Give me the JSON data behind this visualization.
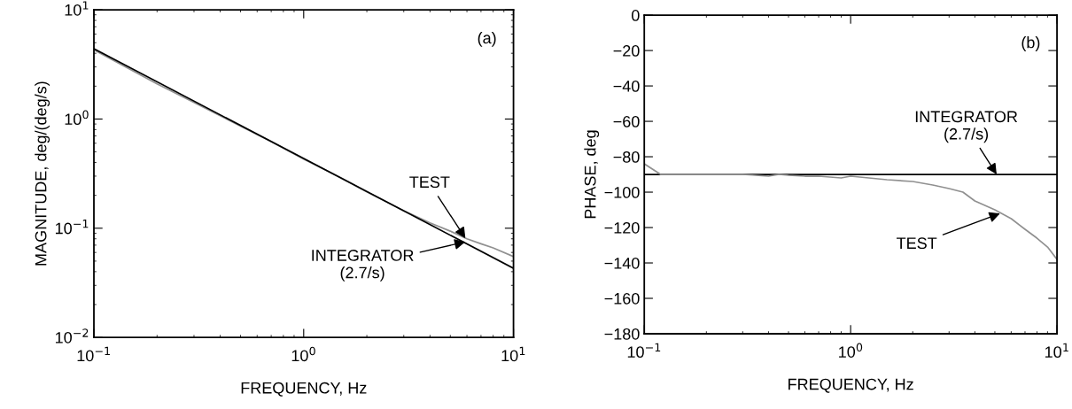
{
  "chart_data": [
    {
      "type": "line",
      "xlabel": "FREQUENCY, Hz",
      "ylabel": "MAGNITUDE, deg/(deg/s)",
      "log": "xy",
      "grid": false,
      "marker": "none",
      "line_style": "solid",
      "xlim": [
        0.1,
        10
      ],
      "ylim": [
        0.01,
        10
      ],
      "xticks": [
        {
          "value": 0.1,
          "label": "10$^{−1}$"
        },
        {
          "value": 1,
          "label": "10$^{0}$"
        },
        {
          "value": 10,
          "label": "10$^{1}$"
        }
      ],
      "yticks": [
        {
          "value": 0.01,
          "label": "10$^{−2}$"
        },
        {
          "value": 0.1,
          "label": "10$^{−1}$"
        },
        {
          "value": 1,
          "label": "10$^{0}$"
        },
        {
          "value": 10,
          "label": "10$^{1}$"
        }
      ],
      "series": [
        {
          "color": "#909090",
          "x": [
            0.1,
            0.2,
            0.3,
            0.5,
            0.7,
            1,
            1.5,
            2,
            3,
            4,
            5,
            6,
            7,
            8,
            10
          ],
          "values": [
            4.3,
            2.1,
            1.42,
            0.86,
            0.62,
            0.43,
            0.29,
            0.215,
            0.145,
            0.112,
            0.094,
            0.08,
            0.072,
            0.066,
            0.055
          ]
        },
        {
          "color": "#000000",
          "x": [
            0.1,
            10
          ],
          "values": [
            4.4,
            0.043
          ]
        }
      ],
      "annotations": [
        "(a)",
        {
          "text": "TEST",
          "x": 5.9,
          "y": 0.081
        },
        {
          "text": "INTEGRATOR\n(2.7/s)",
          "x": 5.9,
          "y": 0.075
        }
      ]
    },
    {
      "type": "line",
      "xlabel": "FREQUENCY, Hz",
      "ylabel": "PHASE, deg",
      "log": "x",
      "grid": false,
      "marker": "none",
      "line_style": "solid",
      "xlim": [
        0.1,
        10
      ],
      "ylim": [
        -180,
        0
      ],
      "xticks": [
        {
          "value": 0.1,
          "label": "10$^{−1}$"
        },
        {
          "value": 1,
          "label": "10$^{0}$"
        },
        {
          "value": 10,
          "label": "10$^{1}$"
        }
      ],
      "yticks": [
        {
          "value": -180,
          "label": "−180"
        },
        {
          "value": -160,
          "label": "−160"
        },
        {
          "value": -140,
          "label": "−140"
        },
        {
          "value": -120,
          "label": "−120"
        },
        {
          "value": -100,
          "label": "−100"
        },
        {
          "value": -80,
          "label": "−80"
        },
        {
          "value": -60,
          "label": "−60"
        },
        {
          "value": -40,
          "label": "−40"
        },
        {
          "value": -20,
          "label": "−20"
        },
        0
      ],
      "series": [
        {
          "color": "#000000",
          "x": [
            0.1,
            10
          ],
          "values": [
            -90,
            -90
          ]
        },
        {
          "color": "#909090",
          "x": [
            0.1,
            0.12,
            0.2,
            0.3,
            0.4,
            0.45,
            0.5,
            0.6,
            0.7,
            0.9,
            1,
            1.5,
            2,
            2.5,
            3,
            3.5,
            4,
            5,
            6,
            7,
            8,
            9,
            10
          ],
          "values": [
            -84,
            -90,
            -90,
            -90,
            -91,
            -90,
            -90.5,
            -91,
            -91,
            -92,
            -91,
            -93,
            -94,
            -96,
            -98,
            -100,
            -105,
            -110,
            -115,
            -121,
            -126,
            -131,
            -138
          ]
        }
      ],
      "annotations": [
        "(b)",
        {
          "text": "INTEGRATOR\n(2.7/s)",
          "x": 5.1,
          "y": -90
        },
        {
          "text": "TEST",
          "x": 5.3,
          "y": -112
        }
      ]
    }
  ]
}
